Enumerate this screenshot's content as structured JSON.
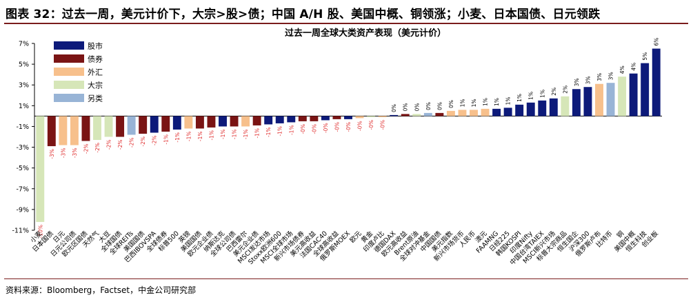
{
  "figure_title": "图表 32：过去一周，美元计价下，大宗>股>债；中国 A/H 股、美国中概、铜领涨；小麦、日本国债、日元领跌",
  "source": "资料来源：Bloomberg，Factset，中金公司研究部",
  "colors": {
    "股市": "#0d1a7a",
    "债券": "#7a1414",
    "外汇": "#f7c08c",
    "大宗": "#d6e6b8",
    "另类": "#98b4d6",
    "negative_label": "#e03030",
    "title_rule": "#7a1c1c"
  },
  "chart_data": {
    "type": "bar",
    "title": "过去一周全球大类资产表现（美元计价）",
    "ylim": [
      -11,
      7
    ],
    "yticks": [
      7,
      5,
      3,
      1,
      -1,
      -3,
      -5,
      -7,
      -9,
      -11
    ],
    "ytick_labels": [
      "7%",
      "5%",
      "3%",
      "1%",
      "-1%",
      "-3%",
      "-5%",
      "-7%",
      "-9%",
      "-11%"
    ],
    "legend_placement": "top-left",
    "legend": [
      "股市",
      "债券",
      "外汇",
      "大宗",
      "另类"
    ],
    "categories": [
      "小麦",
      "日本国债",
      "日元",
      "日元公司债",
      "欧元区国债",
      "天然气",
      "大豆",
      "全球国债",
      "全球REITs",
      "美国国债",
      "巴西IBOVSPA",
      "全球债券",
      "标普500",
      "英镑",
      "美国国债",
      "欧元企业债",
      "纳斯达克",
      "全球公司债",
      "巴西雷尔",
      "美元企业债",
      "MSCI发达市场",
      "Stoxx欧洲600",
      "MSCI全球市场",
      "新兴市场债券",
      "美元高收益",
      "法国CAC40",
      "全球高收益",
      "俄罗斯MOEX",
      "欧元",
      "黄金",
      "印度卢比",
      "德国DAX",
      "欧元高收益",
      "Brent原油",
      "全球对冲基金",
      "中国国债",
      "美元指数",
      "新兴市场货币",
      "人民币",
      "澳元",
      "FAAMNG",
      "日经225",
      "韩国KOSPI",
      "印度Nifty",
      "中国台湾TAIEX",
      "MSCI新兴市场",
      "标普大宗商品",
      "恒生国企",
      "沪深300",
      "俄罗斯卢布",
      "比特币",
      "铜",
      "美国中概",
      "恒生科技",
      "创业板"
    ],
    "asset_class": [
      "大宗",
      "债券",
      "外汇",
      "外汇",
      "债券",
      "大宗",
      "大宗",
      "债券",
      "另类",
      "债券",
      "股市",
      "债券",
      "股市",
      "外汇",
      "债券",
      "债券",
      "股市",
      "债券",
      "外汇",
      "债券",
      "股市",
      "股市",
      "股市",
      "债券",
      "债券",
      "股市",
      "债券",
      "股市",
      "外汇",
      "大宗",
      "外汇",
      "股市",
      "债券",
      "大宗",
      "另类",
      "债券",
      "外汇",
      "外汇",
      "外汇",
      "外汇",
      "股市",
      "股市",
      "股市",
      "股市",
      "股市",
      "股市",
      "大宗",
      "股市",
      "股市",
      "外汇",
      "另类",
      "大宗",
      "股市",
      "股市",
      "股市"
    ],
    "values": [
      -10.2,
      -2.9,
      -2.8,
      -2.8,
      -2.4,
      -2.3,
      -2.0,
      -2.0,
      -1.8,
      -1.7,
      -1.6,
      -1.5,
      -1.3,
      -1.2,
      -1.2,
      -1.1,
      -1.0,
      -1.0,
      -1.0,
      -0.9,
      -0.8,
      -0.7,
      -0.6,
      -0.5,
      -0.5,
      -0.4,
      -0.3,
      -0.3,
      -0.2,
      -0.1,
      -0.1,
      0.1,
      0.2,
      0.2,
      0.3,
      0.3,
      0.5,
      0.6,
      0.6,
      0.7,
      0.7,
      0.8,
      1.1,
      1.3,
      1.5,
      1.7,
      1.9,
      2.6,
      2.8,
      3.1,
      3.2,
      3.8,
      4.1,
      5.1,
      6.5
    ],
    "data_labels": [
      "-10%",
      "-3%",
      "-3%",
      "-3%",
      "-2%",
      "-2%",
      "-2%",
      "-2%",
      "-2%",
      "-2%",
      "-2%",
      "-1%",
      "-1%",
      "-1%",
      "-1%",
      "-1%",
      "-1%",
      "-1%",
      "-1%",
      "-1%",
      "-1%",
      "-1%",
      "-1%",
      "-0%",
      "-0%",
      "-0%",
      "-0%",
      "-0%",
      "-0%",
      "-0%",
      "-0%",
      "0%",
      "0%",
      "0%",
      "0%",
      "0%",
      "0%",
      "1%",
      "1%",
      "1%",
      "1%",
      "1%",
      "1%",
      "1%",
      "1%",
      "2%",
      "2%",
      "3%",
      "3%",
      "3%",
      "3%",
      "4%",
      "4%",
      "5%",
      "6%"
    ]
  }
}
